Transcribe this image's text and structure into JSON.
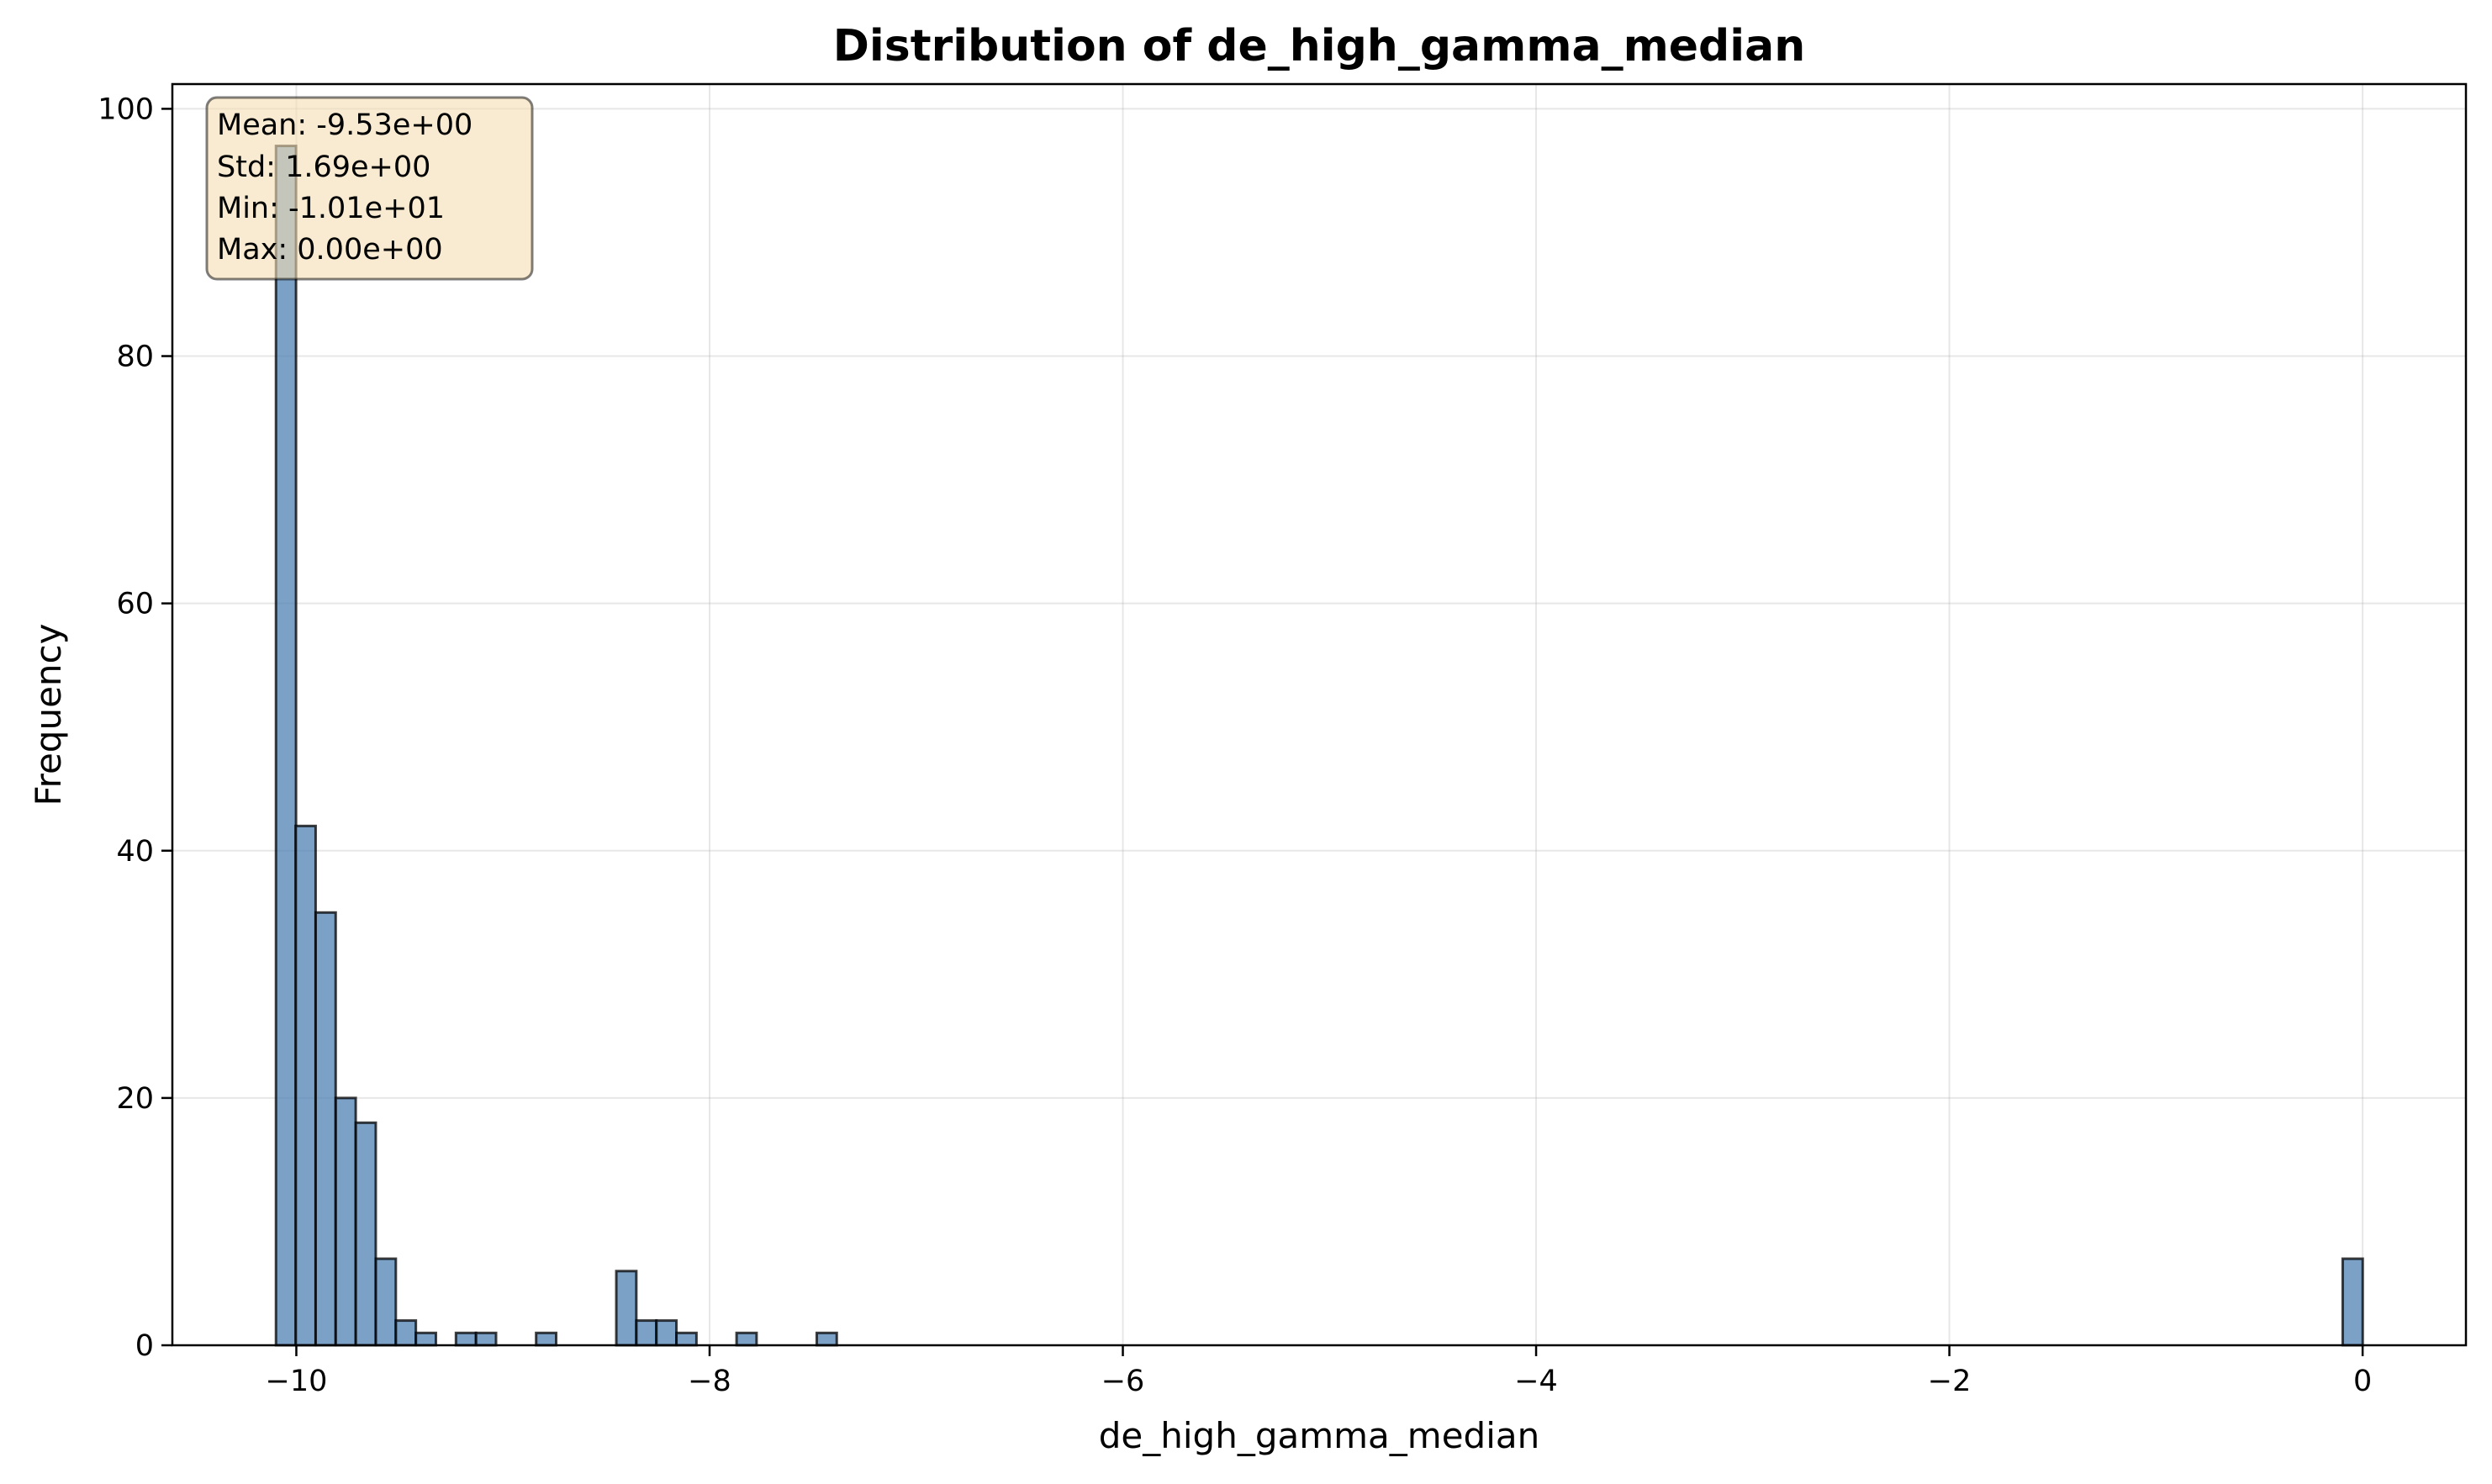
{
  "chart_data": {
    "type": "bar",
    "title": "Distribution of de_high_gamma_median",
    "xlabel": "de_high_gamma_median",
    "ylabel": "Frequency",
    "xlim": [
      -10.6,
      0.5
    ],
    "ylim": [
      0,
      102
    ],
    "xticks": [
      -10,
      -8,
      -6,
      -4,
      -2,
      0
    ],
    "xtick_labels": [
      "−10",
      "−8",
      "−6",
      "−4",
      "−2",
      "0"
    ],
    "yticks": [
      0,
      20,
      40,
      60,
      80,
      100
    ],
    "ytick_labels": [
      "0",
      "20",
      "40",
      "60",
      "80",
      "100"
    ],
    "grid": true,
    "bar_color": "#4f81b4",
    "bin_width": 0.097,
    "bins": [
      {
        "x": -10.05,
        "count": 97
      },
      {
        "x": -9.955,
        "count": 42
      },
      {
        "x": -9.858,
        "count": 35
      },
      {
        "x": -9.761,
        "count": 20
      },
      {
        "x": -9.664,
        "count": 18
      },
      {
        "x": -9.567,
        "count": 7
      },
      {
        "x": -9.47,
        "count": 2
      },
      {
        "x": -9.373,
        "count": 1
      },
      {
        "x": -9.179,
        "count": 1
      },
      {
        "x": -9.082,
        "count": 1
      },
      {
        "x": -8.791,
        "count": 1
      },
      {
        "x": -8.403,
        "count": 6
      },
      {
        "x": -8.306,
        "count": 2
      },
      {
        "x": -8.209,
        "count": 2
      },
      {
        "x": -8.112,
        "count": 1
      },
      {
        "x": -7.821,
        "count": 1
      },
      {
        "x": -7.433,
        "count": 1
      },
      {
        "x": -0.048,
        "count": 7
      }
    ],
    "stats": {
      "lines": [
        "Mean: -9.53e+00",
        "Std: 1.69e+00",
        "Min: -1.01e+01",
        "Max: 0.00e+00"
      ],
      "box_color": "#f5deb3"
    }
  }
}
